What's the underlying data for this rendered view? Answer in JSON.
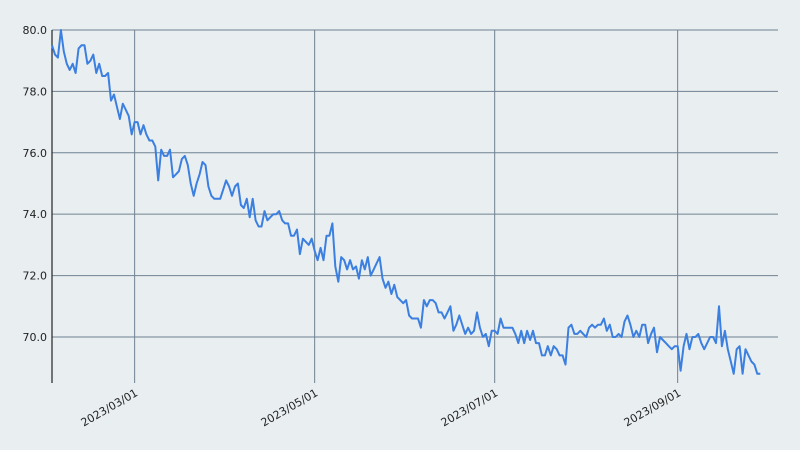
{
  "chart_data": {
    "type": "line",
    "title": "",
    "xlabel": "",
    "ylabel": "",
    "xlim": [
      "2023-02-01",
      "2023-10-05"
    ],
    "ylim": [
      68.5,
      80.0
    ],
    "grid": true,
    "colors": {
      "background": "#e9eef1",
      "grid": "#6f8291",
      "line": "#3b7fe0",
      "axis": "#222222"
    },
    "y_ticks": [
      {
        "value": 70,
        "label": "70.0"
      },
      {
        "value": 72,
        "label": "72.0"
      },
      {
        "value": 74,
        "label": "74.0"
      },
      {
        "value": 76,
        "label": "76.0"
      },
      {
        "value": 78,
        "label": "78.0"
      },
      {
        "value": 80,
        "label": "80.0"
      }
    ],
    "x_ticks": [
      {
        "value": "2023-03-01",
        "label": "2023/03/01"
      },
      {
        "value": "2023-05-01",
        "label": "2023/05/01"
      },
      {
        "value": "2023-07-01",
        "label": "2023/07/01"
      },
      {
        "value": "2023-09-01",
        "label": "2023/09/01"
      }
    ],
    "series": [
      {
        "points": [
          [
            "2023-02-01",
            79.5
          ],
          [
            "2023-02-02",
            79.2
          ],
          [
            "2023-02-03",
            79.1
          ],
          [
            "2023-02-04",
            80.0
          ],
          [
            "2023-02-05",
            79.3
          ],
          [
            "2023-02-06",
            78.9
          ],
          [
            "2023-02-07",
            78.7
          ],
          [
            "2023-02-08",
            78.9
          ],
          [
            "2023-02-09",
            78.6
          ],
          [
            "2023-02-10",
            79.4
          ],
          [
            "2023-02-11",
            79.5
          ],
          [
            "2023-02-12",
            79.5
          ],
          [
            "2023-02-13",
            78.9
          ],
          [
            "2023-02-14",
            79.0
          ],
          [
            "2023-02-15",
            79.2
          ],
          [
            "2023-02-16",
            78.6
          ],
          [
            "2023-02-17",
            78.9
          ],
          [
            "2023-02-18",
            78.5
          ],
          [
            "2023-02-19",
            78.5
          ],
          [
            "2023-02-20",
            78.6
          ],
          [
            "2023-02-21",
            77.7
          ],
          [
            "2023-02-22",
            77.9
          ],
          [
            "2023-02-23",
            77.5
          ],
          [
            "2023-02-24",
            77.1
          ],
          [
            "2023-02-25",
            77.6
          ],
          [
            "2023-02-26",
            77.4
          ],
          [
            "2023-02-27",
            77.2
          ],
          [
            "2023-02-28",
            76.6
          ],
          [
            "2023-03-01",
            77.0
          ],
          [
            "2023-03-02",
            77.0
          ],
          [
            "2023-03-03",
            76.6
          ],
          [
            "2023-03-04",
            76.9
          ],
          [
            "2023-03-05",
            76.6
          ],
          [
            "2023-03-06",
            76.4
          ],
          [
            "2023-03-07",
            76.4
          ],
          [
            "2023-03-08",
            76.2
          ],
          [
            "2023-03-09",
            75.1
          ],
          [
            "2023-03-10",
            76.1
          ],
          [
            "2023-03-11",
            75.9
          ],
          [
            "2023-03-12",
            75.9
          ],
          [
            "2023-03-13",
            76.1
          ],
          [
            "2023-03-14",
            75.2
          ],
          [
            "2023-03-15",
            75.3
          ],
          [
            "2023-03-16",
            75.4
          ],
          [
            "2023-03-17",
            75.8
          ],
          [
            "2023-03-18",
            75.9
          ],
          [
            "2023-03-19",
            75.6
          ],
          [
            "2023-03-20",
            75.0
          ],
          [
            "2023-03-21",
            74.6
          ],
          [
            "2023-03-22",
            75.0
          ],
          [
            "2023-03-23",
            75.3
          ],
          [
            "2023-03-24",
            75.7
          ],
          [
            "2023-03-25",
            75.6
          ],
          [
            "2023-03-26",
            74.9
          ],
          [
            "2023-03-27",
            74.6
          ],
          [
            "2023-03-28",
            74.5
          ],
          [
            "2023-03-29",
            74.5
          ],
          [
            "2023-03-30",
            74.5
          ],
          [
            "2023-03-31",
            74.8
          ],
          [
            "2023-04-01",
            75.1
          ],
          [
            "2023-04-02",
            74.9
          ],
          [
            "2023-04-03",
            74.6
          ],
          [
            "2023-04-04",
            74.9
          ],
          [
            "2023-04-05",
            75.0
          ],
          [
            "2023-04-06",
            74.3
          ],
          [
            "2023-04-07",
            74.2
          ],
          [
            "2023-04-08",
            74.5
          ],
          [
            "2023-04-09",
            73.9
          ],
          [
            "2023-04-10",
            74.5
          ],
          [
            "2023-04-11",
            73.8
          ],
          [
            "2023-04-12",
            73.6
          ],
          [
            "2023-04-13",
            73.6
          ],
          [
            "2023-04-14",
            74.1
          ],
          [
            "2023-04-15",
            73.8
          ],
          [
            "2023-04-16",
            73.9
          ],
          [
            "2023-04-17",
            74.0
          ],
          [
            "2023-04-18",
            74.0
          ],
          [
            "2023-04-19",
            74.1
          ],
          [
            "2023-04-20",
            73.8
          ],
          [
            "2023-04-21",
            73.7
          ],
          [
            "2023-04-22",
            73.7
          ],
          [
            "2023-04-23",
            73.3
          ],
          [
            "2023-04-24",
            73.3
          ],
          [
            "2023-04-25",
            73.5
          ],
          [
            "2023-04-26",
            72.7
          ],
          [
            "2023-04-27",
            73.2
          ],
          [
            "2023-04-28",
            73.1
          ],
          [
            "2023-04-29",
            73.0
          ],
          [
            "2023-04-30",
            73.2
          ],
          [
            "2023-05-01",
            72.8
          ],
          [
            "2023-05-02",
            72.5
          ],
          [
            "2023-05-03",
            72.9
          ],
          [
            "2023-05-04",
            72.5
          ],
          [
            "2023-05-05",
            73.3
          ],
          [
            "2023-05-06",
            73.3
          ],
          [
            "2023-05-07",
            73.7
          ],
          [
            "2023-05-08",
            72.3
          ],
          [
            "2023-05-09",
            71.8
          ],
          [
            "2023-05-10",
            72.6
          ],
          [
            "2023-05-11",
            72.5
          ],
          [
            "2023-05-12",
            72.2
          ],
          [
            "2023-05-13",
            72.5
          ],
          [
            "2023-05-14",
            72.2
          ],
          [
            "2023-05-15",
            72.3
          ],
          [
            "2023-05-16",
            71.9
          ],
          [
            "2023-05-17",
            72.5
          ],
          [
            "2023-05-18",
            72.2
          ],
          [
            "2023-05-19",
            72.6
          ],
          [
            "2023-05-20",
            72.0
          ],
          [
            "2023-05-21",
            72.2
          ],
          [
            "2023-05-22",
            72.4
          ],
          [
            "2023-05-23",
            72.6
          ],
          [
            "2023-05-24",
            71.9
          ],
          [
            "2023-05-25",
            71.6
          ],
          [
            "2023-05-26",
            71.8
          ],
          [
            "2023-05-27",
            71.4
          ],
          [
            "2023-05-28",
            71.7
          ],
          [
            "2023-05-29",
            71.3
          ],
          [
            "2023-05-30",
            71.2
          ],
          [
            "2023-05-31",
            71.1
          ],
          [
            "2023-06-01",
            71.2
          ],
          [
            "2023-06-02",
            70.7
          ],
          [
            "2023-06-03",
            70.6
          ],
          [
            "2023-06-04",
            70.6
          ],
          [
            "2023-06-05",
            70.6
          ],
          [
            "2023-06-06",
            70.3
          ],
          [
            "2023-06-07",
            71.2
          ],
          [
            "2023-06-08",
            71.0
          ],
          [
            "2023-06-09",
            71.2
          ],
          [
            "2023-06-10",
            71.2
          ],
          [
            "2023-06-11",
            71.1
          ],
          [
            "2023-06-12",
            70.8
          ],
          [
            "2023-06-13",
            70.8
          ],
          [
            "2023-06-14",
            70.6
          ],
          [
            "2023-06-15",
            70.8
          ],
          [
            "2023-06-16",
            71.0
          ],
          [
            "2023-06-17",
            70.2
          ],
          [
            "2023-06-18",
            70.4
          ],
          [
            "2023-06-19",
            70.7
          ],
          [
            "2023-06-20",
            70.4
          ],
          [
            "2023-06-21",
            70.1
          ],
          [
            "2023-06-22",
            70.3
          ],
          [
            "2023-06-23",
            70.1
          ],
          [
            "2023-06-24",
            70.2
          ],
          [
            "2023-06-25",
            70.8
          ],
          [
            "2023-06-26",
            70.3
          ],
          [
            "2023-06-27",
            70.0
          ],
          [
            "2023-06-28",
            70.1
          ],
          [
            "2023-06-29",
            69.7
          ],
          [
            "2023-06-30",
            70.2
          ],
          [
            "2023-07-01",
            70.2
          ],
          [
            "2023-07-02",
            70.1
          ],
          [
            "2023-07-03",
            70.6
          ],
          [
            "2023-07-04",
            70.3
          ],
          [
            "2023-07-05",
            70.3
          ],
          [
            "2023-07-06",
            70.3
          ],
          [
            "2023-07-07",
            70.3
          ],
          [
            "2023-07-08",
            70.1
          ],
          [
            "2023-07-09",
            69.8
          ],
          [
            "2023-07-10",
            70.2
          ],
          [
            "2023-07-11",
            69.8
          ],
          [
            "2023-07-12",
            70.2
          ],
          [
            "2023-07-13",
            69.9
          ],
          [
            "2023-07-14",
            70.2
          ],
          [
            "2023-07-15",
            69.8
          ],
          [
            "2023-07-16",
            69.8
          ],
          [
            "2023-07-17",
            69.4
          ],
          [
            "2023-07-18",
            69.4
          ],
          [
            "2023-07-19",
            69.7
          ],
          [
            "2023-07-20",
            69.4
          ],
          [
            "2023-07-21",
            69.7
          ],
          [
            "2023-07-22",
            69.6
          ],
          [
            "2023-07-23",
            69.4
          ],
          [
            "2023-07-24",
            69.4
          ],
          [
            "2023-07-25",
            69.1
          ],
          [
            "2023-07-26",
            70.3
          ],
          [
            "2023-07-27",
            70.4
          ],
          [
            "2023-07-28",
            70.1
          ],
          [
            "2023-07-29",
            70.1
          ],
          [
            "2023-07-30",
            70.2
          ],
          [
            "2023-07-31",
            70.1
          ],
          [
            "2023-08-01",
            70.0
          ],
          [
            "2023-08-02",
            70.3
          ],
          [
            "2023-08-03",
            70.4
          ],
          [
            "2023-08-04",
            70.3
          ],
          [
            "2023-08-05",
            70.4
          ],
          [
            "2023-08-06",
            70.4
          ],
          [
            "2023-08-07",
            70.6
          ],
          [
            "2023-08-08",
            70.2
          ],
          [
            "2023-08-09",
            70.4
          ],
          [
            "2023-08-10",
            70.0
          ],
          [
            "2023-08-11",
            70.0
          ],
          [
            "2023-08-12",
            70.1
          ],
          [
            "2023-08-13",
            70.0
          ],
          [
            "2023-08-14",
            70.5
          ],
          [
            "2023-08-15",
            70.7
          ],
          [
            "2023-08-16",
            70.4
          ],
          [
            "2023-08-17",
            70.0
          ],
          [
            "2023-08-18",
            70.2
          ],
          [
            "2023-08-19",
            70.0
          ],
          [
            "2023-08-20",
            70.4
          ],
          [
            "2023-08-21",
            70.4
          ],
          [
            "2023-08-22",
            69.8
          ],
          [
            "2023-08-23",
            70.1
          ],
          [
            "2023-08-24",
            70.3
          ],
          [
            "2023-08-25",
            69.5
          ],
          [
            "2023-08-26",
            70.0
          ],
          [
            "2023-08-27",
            69.9
          ],
          [
            "2023-08-28",
            69.8
          ],
          [
            "2023-08-29",
            69.7
          ],
          [
            "2023-08-30",
            69.6
          ],
          [
            "2023-08-31",
            69.7
          ],
          [
            "2023-09-01",
            69.7
          ],
          [
            "2023-09-02",
            68.9
          ],
          [
            "2023-09-03",
            69.7
          ],
          [
            "2023-09-04",
            70.1
          ],
          [
            "2023-09-05",
            69.6
          ],
          [
            "2023-09-06",
            70.0
          ],
          [
            "2023-09-07",
            70.0
          ],
          [
            "2023-09-08",
            70.1
          ],
          [
            "2023-09-09",
            69.8
          ],
          [
            "2023-09-10",
            69.6
          ],
          [
            "2023-09-11",
            69.8
          ],
          [
            "2023-09-12",
            70.0
          ],
          [
            "2023-09-13",
            70.0
          ],
          [
            "2023-09-14",
            69.8
          ],
          [
            "2023-09-15",
            71.0
          ],
          [
            "2023-09-16",
            69.7
          ],
          [
            "2023-09-17",
            70.2
          ],
          [
            "2023-09-18",
            69.6
          ],
          [
            "2023-09-19",
            69.2
          ],
          [
            "2023-09-20",
            68.8
          ],
          [
            "2023-09-21",
            69.6
          ],
          [
            "2023-09-22",
            69.7
          ],
          [
            "2023-09-23",
            68.8
          ],
          [
            "2023-09-24",
            69.6
          ],
          [
            "2023-09-25",
            69.4
          ],
          [
            "2023-09-26",
            69.2
          ],
          [
            "2023-09-27",
            69.1
          ],
          [
            "2023-09-28",
            68.8
          ],
          [
            "2023-09-29",
            68.8
          ]
        ]
      }
    ]
  }
}
